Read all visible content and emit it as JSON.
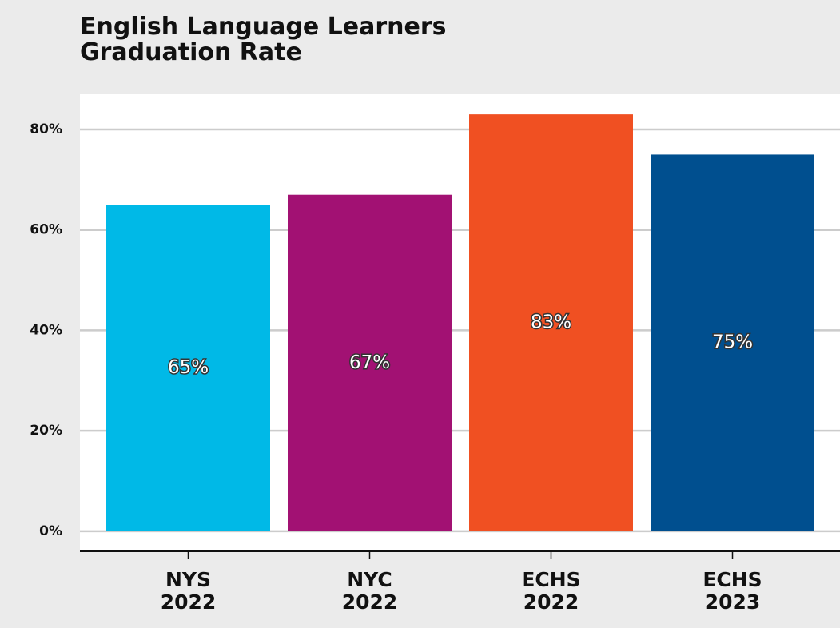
{
  "chart_data": {
    "type": "bar",
    "title": "English Language Learners Graduation Rate",
    "categories": [
      "NYS 2022",
      "NYC 2022",
      "ECHS 2022",
      "ECHS 2023"
    ],
    "values": [
      65,
      67,
      83,
      75
    ],
    "value_labels": [
      "65%",
      "67%",
      "83%",
      "75%"
    ],
    "colors": [
      "#00b9e7",
      "#a21173",
      "#f05022",
      "#004f8f"
    ],
    "ylim": [
      -4,
      87
    ],
    "yticks": [
      {
        "value": 0,
        "label": "0%"
      },
      {
        "value": 20,
        "label": "20%"
      },
      {
        "value": 40,
        "label": "40%"
      },
      {
        "value": 60,
        "label": "60%"
      },
      {
        "value": 80,
        "label": "80%"
      }
    ],
    "grid": true
  }
}
